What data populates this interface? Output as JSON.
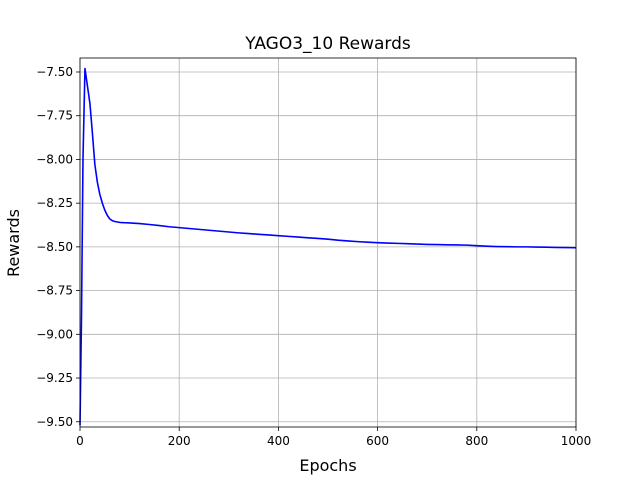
{
  "chart_data": {
    "type": "line",
    "title": "YAGO3_10 Rewards",
    "xlabel": "Epochs",
    "ylabel": "Rewards",
    "xlim": [
      0,
      1000
    ],
    "ylim": [
      -9.53,
      -7.42
    ],
    "grid": true,
    "xticks": [
      0,
      200,
      400,
      600,
      800,
      1000
    ],
    "xtick_labels": [
      "0",
      "200",
      "400",
      "600",
      "800",
      "1000"
    ],
    "yticks": [
      -7.5,
      -7.75,
      -8.0,
      -8.25,
      -8.5,
      -8.75,
      -9.0,
      -9.25,
      -9.5
    ],
    "ytick_labels": [
      "−7.50",
      "−7.75",
      "−8.00",
      "−8.25",
      "−8.50",
      "−8.75",
      "−9.00",
      "−9.25",
      "−9.50"
    ],
    "series": [
      {
        "color": "#0000ff",
        "x": [
          0,
          3,
          6,
          10,
          15,
          20,
          25,
          30,
          35,
          40,
          45,
          50,
          55,
          60,
          65,
          70,
          80,
          90,
          100,
          120,
          140,
          160,
          180,
          200,
          220,
          240,
          260,
          280,
          300,
          320,
          340,
          360,
          380,
          400,
          420,
          440,
          460,
          480,
          500,
          520,
          540,
          560,
          580,
          600,
          620,
          640,
          660,
          680,
          700,
          720,
          740,
          760,
          780,
          800,
          820,
          840,
          860,
          880,
          900,
          920,
          940,
          960,
          980,
          1000
        ],
        "y": [
          -9.52,
          -8.9,
          -8.0,
          -7.48,
          -7.58,
          -7.68,
          -7.85,
          -8.03,
          -8.13,
          -8.2,
          -8.25,
          -8.29,
          -8.32,
          -8.34,
          -8.35,
          -8.355,
          -8.36,
          -8.362,
          -8.363,
          -8.367,
          -8.372,
          -8.378,
          -8.385,
          -8.39,
          -8.395,
          -8.4,
          -8.405,
          -8.41,
          -8.415,
          -8.42,
          -8.424,
          -8.428,
          -8.432,
          -8.436,
          -8.44,
          -8.444,
          -8.448,
          -8.452,
          -8.456,
          -8.462,
          -8.466,
          -8.47,
          -8.473,
          -8.476,
          -8.478,
          -8.48,
          -8.482,
          -8.484,
          -8.486,
          -8.487,
          -8.488,
          -8.489,
          -8.49,
          -8.493,
          -8.496,
          -8.498,
          -8.499,
          -8.5,
          -8.5,
          -8.501,
          -8.502,
          -8.503,
          -8.504,
          -8.505
        ]
      }
    ]
  }
}
